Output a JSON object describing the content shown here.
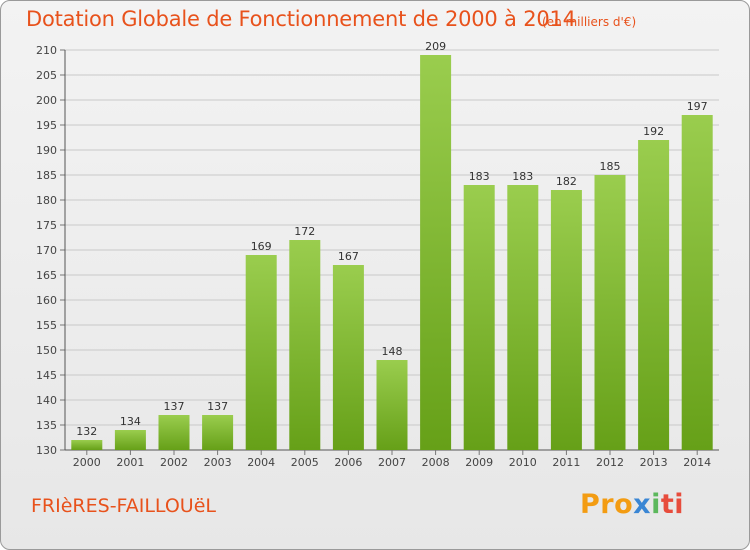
{
  "header": {
    "title": "Dotation Globale de Fonctionnement de 2000 à 2014",
    "subtitle": "(en milliers d'€)"
  },
  "footer": {
    "commune": "FRIèRES-FAILLOUëL",
    "logo": [
      "Pro",
      "x",
      "i",
      "ti"
    ]
  },
  "colors": {
    "bar_top": "#9acd4e",
    "bar_bottom": "#66a018",
    "accent": "#e8521c"
  },
  "chart_data": {
    "type": "bar",
    "title": "Dotation Globale de Fonctionnement de 2000 à 2014",
    "xlabel": "",
    "ylabel": "(en milliers d'€)",
    "categories": [
      "2000",
      "2001",
      "2002",
      "2003",
      "2004",
      "2005",
      "2006",
      "2007",
      "2008",
      "2009",
      "2010",
      "2011",
      "2012",
      "2013",
      "2014"
    ],
    "values": [
      132,
      134,
      137,
      137,
      169,
      172,
      167,
      148,
      209,
      183,
      183,
      182,
      185,
      192,
      197
    ],
    "ylim": [
      130,
      210
    ],
    "yticks": [
      130,
      135,
      140,
      145,
      150,
      155,
      160,
      165,
      170,
      175,
      180,
      185,
      190,
      195,
      200,
      205,
      210
    ],
    "grid": true
  }
}
